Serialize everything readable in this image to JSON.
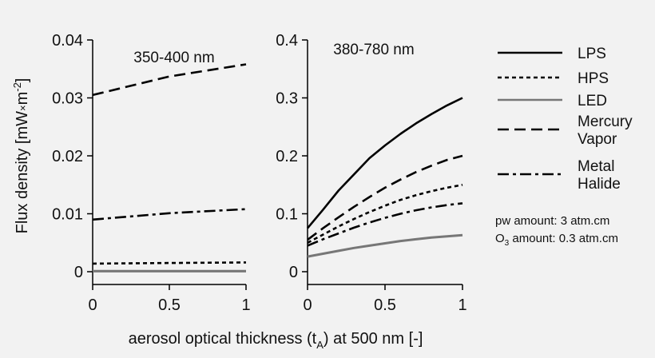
{
  "chart_data": [
    {
      "type": "line",
      "panel_label": "350-400 nm",
      "ylabel": "Flux density [mWm-2]",
      "ylabel_parts": [
        "Flux density [mW",
        "m",
        "-2",
        "]"
      ],
      "x_ticks": [
        "0",
        "0.5",
        "1"
      ],
      "y_ticks": [
        "0",
        "0.01",
        "0.02",
        "0.03",
        "0.04"
      ],
      "xlim": [
        0,
        1
      ],
      "ylim": [
        0,
        0.04
      ],
      "x": [
        0,
        0.5,
        1
      ],
      "series": [
        {
          "name": "LPS",
          "values": [
            0.0001,
            0.0001,
            0.0001
          ]
        },
        {
          "name": "HPS",
          "values": [
            0.0014,
            0.0015,
            0.0016
          ]
        },
        {
          "name": "LED",
          "values": [
            0.0001,
            0.0001,
            0.0001
          ]
        },
        {
          "name": "Mercury Vapor",
          "values": [
            0.0305,
            0.0337,
            0.0358
          ]
        },
        {
          "name": "Metal Halide",
          "values": [
            0.009,
            0.0101,
            0.0108
          ]
        }
      ]
    },
    {
      "type": "line",
      "panel_label": "380-780 nm",
      "x_ticks": [
        "0",
        "0.5",
        "1"
      ],
      "y_ticks": [
        "0",
        "0.1",
        "0.2",
        "0.3",
        "0.4"
      ],
      "xlim": [
        0,
        1
      ],
      "ylim": [
        0,
        0.4
      ],
      "x": [
        0,
        0.1,
        0.2,
        0.3,
        0.4,
        0.5,
        0.6,
        0.7,
        0.8,
        0.9,
        1
      ],
      "series": [
        {
          "name": "LPS",
          "values": [
            0.075,
            0.107,
            0.14,
            0.168,
            0.196,
            0.218,
            0.238,
            0.256,
            0.272,
            0.287,
            0.3
          ]
        },
        {
          "name": "HPS",
          "values": [
            0.05,
            0.064,
            0.078,
            0.091,
            0.103,
            0.114,
            0.124,
            0.132,
            0.139,
            0.145,
            0.15
          ]
        },
        {
          "name": "LED",
          "values": [
            0.026,
            0.031,
            0.036,
            0.041,
            0.045,
            0.049,
            0.053,
            0.056,
            0.059,
            0.061,
            0.063
          ]
        },
        {
          "name": "Mercury Vapor",
          "values": [
            0.055,
            0.075,
            0.094,
            0.112,
            0.129,
            0.145,
            0.159,
            0.172,
            0.183,
            0.193,
            0.2
          ]
        },
        {
          "name": "Metal Halide",
          "values": [
            0.045,
            0.056,
            0.066,
            0.076,
            0.085,
            0.093,
            0.1,
            0.106,
            0.111,
            0.115,
            0.118
          ]
        }
      ]
    }
  ],
  "xlabel_prefix": "aerosol optical thickness (t",
  "xlabel_sub": "A",
  "xlabel_suffix": ") at 500 nm [-]",
  "legend": [
    {
      "name": "LPS",
      "lines": [
        "LPS"
      ],
      "dash": "solid",
      "color": "#000000"
    },
    {
      "name": "HPS",
      "lines": [
        "HPS"
      ],
      "dash": "dotted",
      "color": "#000000"
    },
    {
      "name": "LED",
      "lines": [
        "LED"
      ],
      "dash": "solid",
      "color": "#777777"
    },
    {
      "name": "Mercury Vapor",
      "lines": [
        "Mercury",
        "Vapor"
      ],
      "dash": "dashed",
      "color": "#000000"
    },
    {
      "name": "Metal Halide",
      "lines": [
        "Metal",
        "Halide"
      ],
      "dash": "dashdot",
      "color": "#000000"
    }
  ],
  "notes": {
    "pw": "pw amount: 3 atm.cm",
    "o3_prefix": "O",
    "o3_sub": "3",
    "o3_suffix": " amount: 0.3 atm.cm"
  }
}
